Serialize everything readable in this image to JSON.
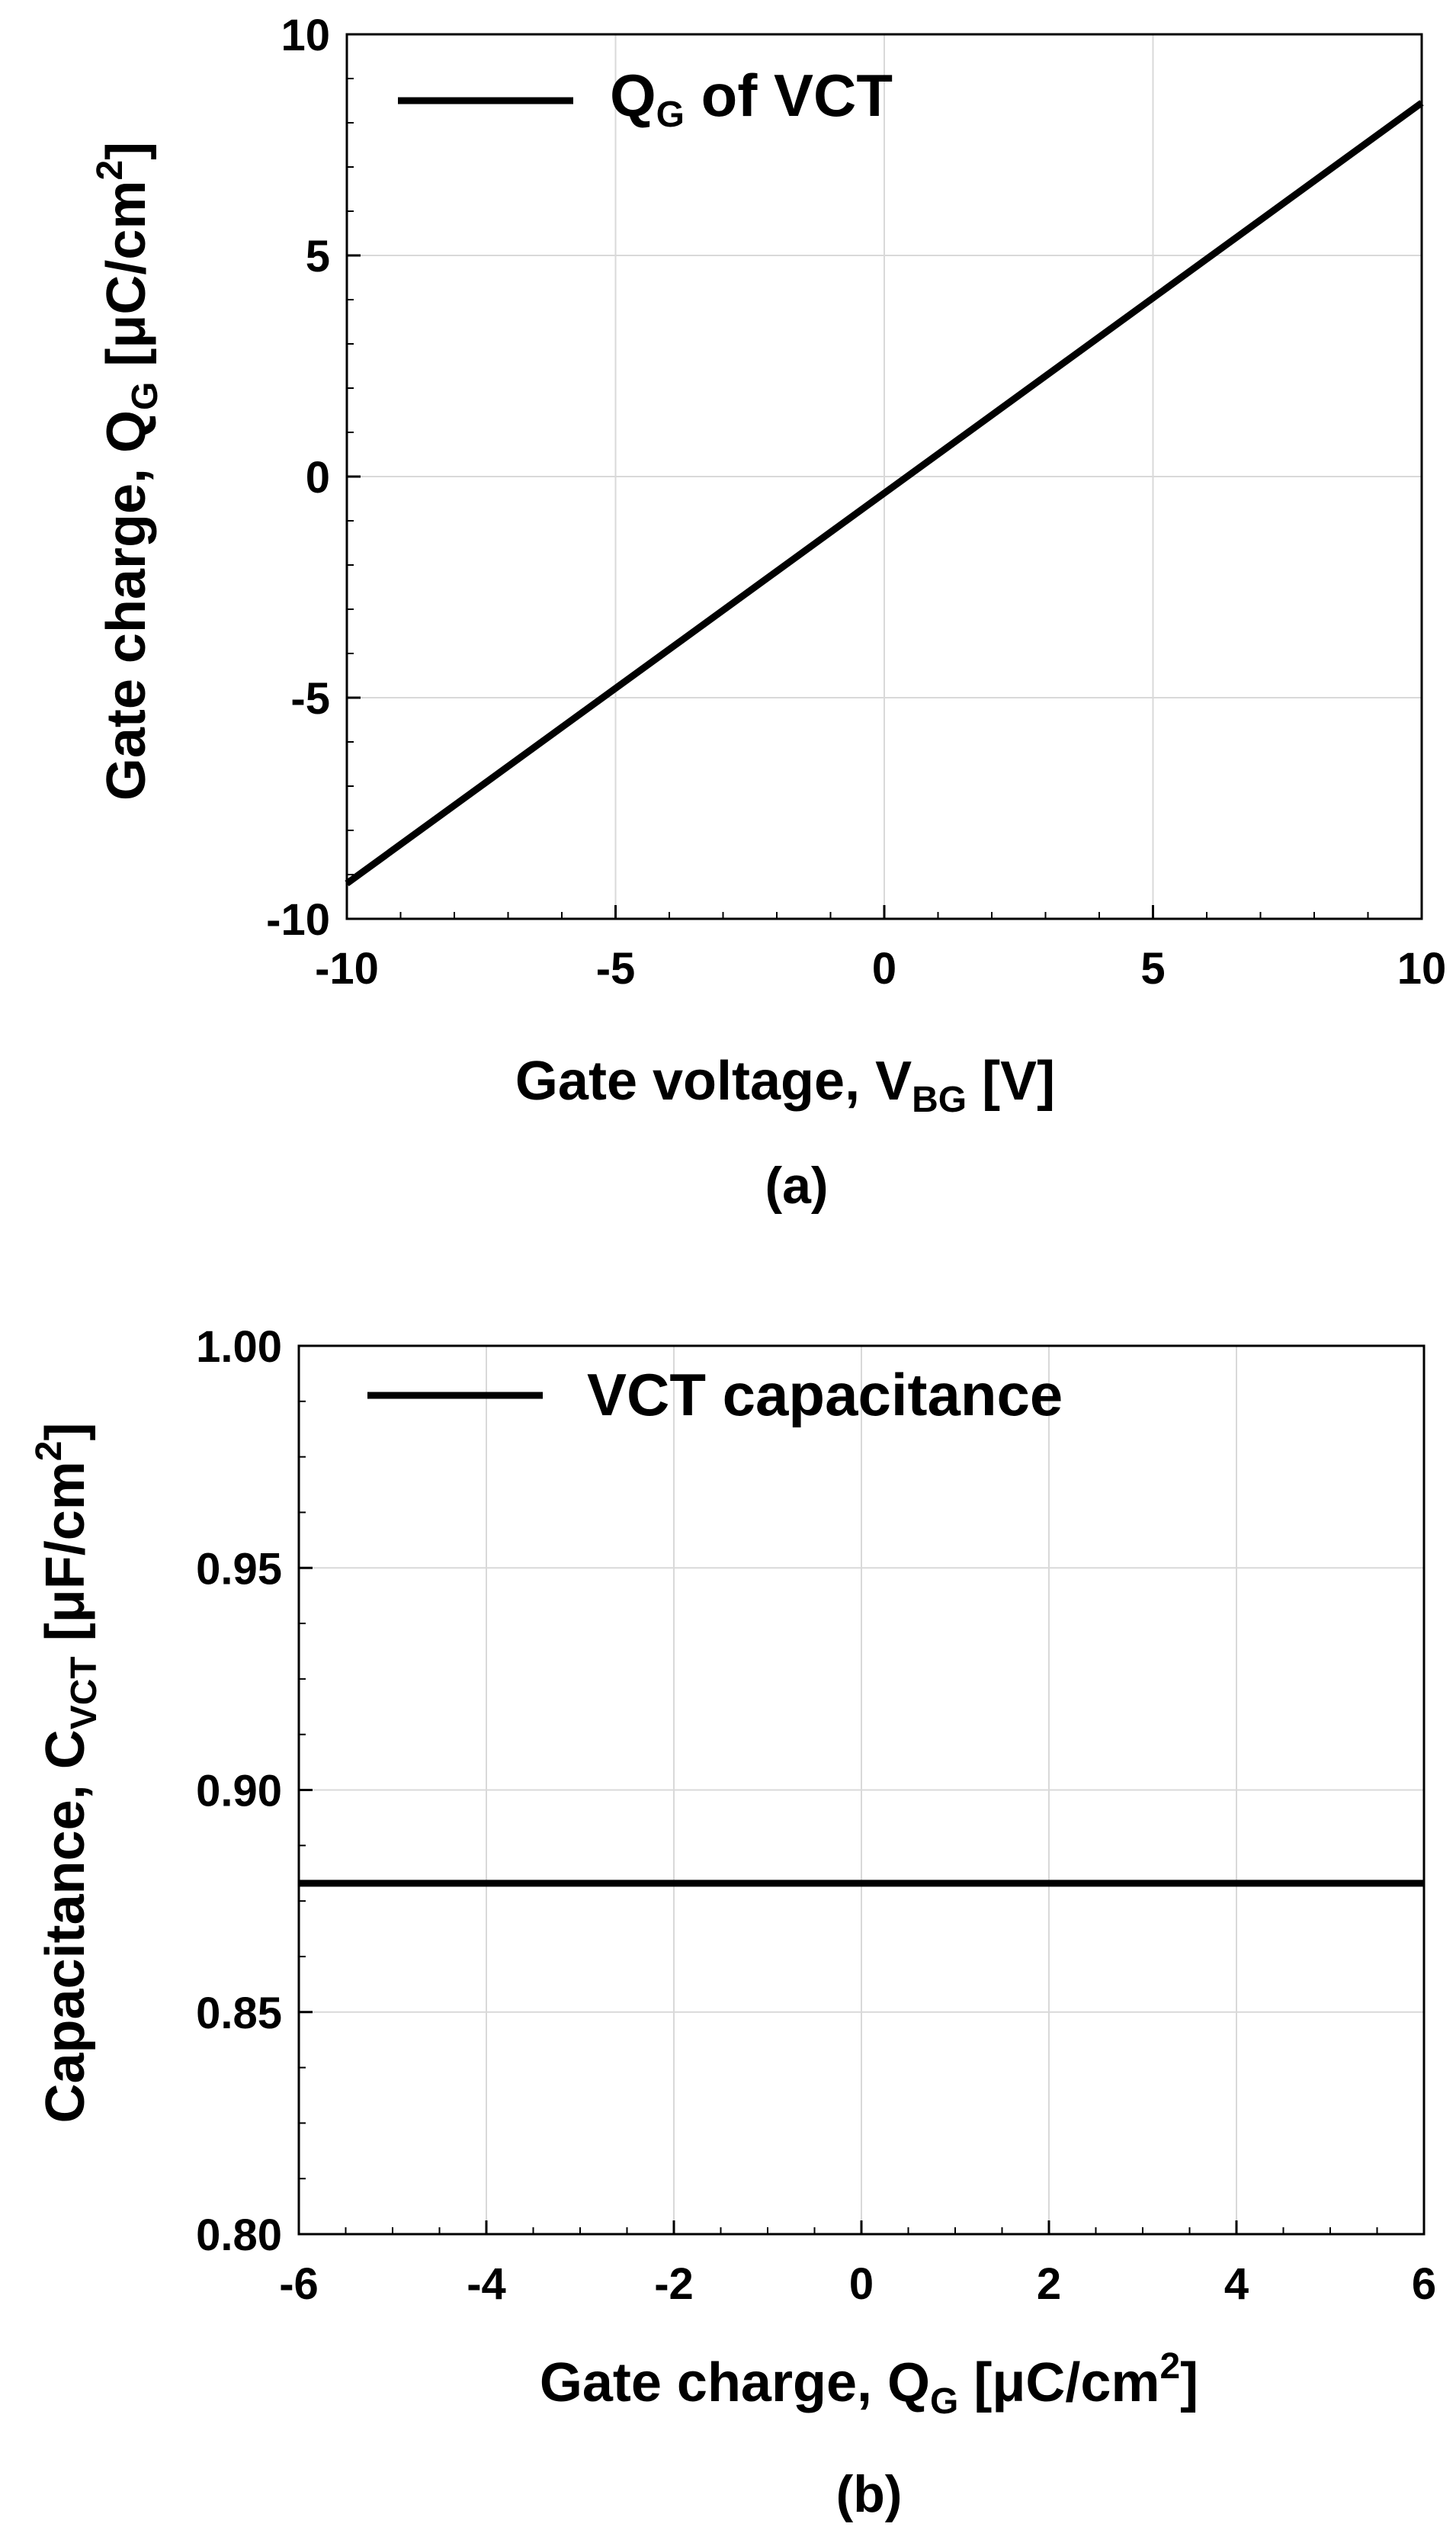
{
  "colors": {
    "line": "#000000",
    "grid": "#d9d9d9",
    "axis": "#000000",
    "background": "#ffffff"
  },
  "chart_data": [
    {
      "type": "line",
      "panel_label": "(a)",
      "xlabel": {
        "main": "Gate voltage, V",
        "sub": "BG",
        "suffix": " [V]"
      },
      "ylabel": {
        "main": "Gate charge, Q",
        "sub": "G",
        "suffix": " [μC/cm",
        "sup": "2",
        "close": "]"
      },
      "xlim": [
        -10,
        10
      ],
      "ylim": [
        -10,
        10
      ],
      "xticks": [
        -10,
        -5,
        0,
        5,
        10
      ],
      "xtick_labels": [
        "-10",
        "-5",
        "0",
        "5",
        "10"
      ],
      "yticks": [
        -10,
        -5,
        0,
        5,
        10
      ],
      "ytick_labels": [
        "-10",
        "-5",
        "0",
        "5",
        "10"
      ],
      "grid": true,
      "legend": {
        "position": "top-left",
        "label_main": "Q",
        "label_sub": "G",
        "label_suffix": " of VCT"
      },
      "series": [
        {
          "name": "QG of VCT",
          "x": [
            -10,
            10
          ],
          "y": [
            -9.2,
            8.45
          ]
        }
      ]
    },
    {
      "type": "line",
      "panel_label": "(b)",
      "xlabel": {
        "main": "Gate charge, Q",
        "sub": "G",
        "suffix": " [μC/cm",
        "sup": "2",
        "close": "]"
      },
      "ylabel": {
        "main": "Capacitance, C",
        "sub": "VCT",
        "suffix": " [μF/cm",
        "sup": "2",
        "close": "]"
      },
      "xlim": [
        -6,
        6
      ],
      "ylim": [
        0.8,
        1.0
      ],
      "xticks": [
        -6,
        -4,
        -2,
        0,
        2,
        4,
        6
      ],
      "xtick_labels": [
        "-6",
        "-4",
        "-2",
        "0",
        "2",
        "4",
        "6"
      ],
      "yticks": [
        0.8,
        0.85,
        0.9,
        0.95,
        1.0
      ],
      "ytick_labels": [
        "0.80",
        "0.85",
        "0.90",
        "0.95",
        "1.00"
      ],
      "grid": true,
      "legend": {
        "position": "top-left",
        "label": "VCT capacitance"
      },
      "series": [
        {
          "name": "VCT capacitance",
          "x": [
            -6,
            6
          ],
          "y": [
            0.879,
            0.879
          ]
        }
      ]
    }
  ]
}
